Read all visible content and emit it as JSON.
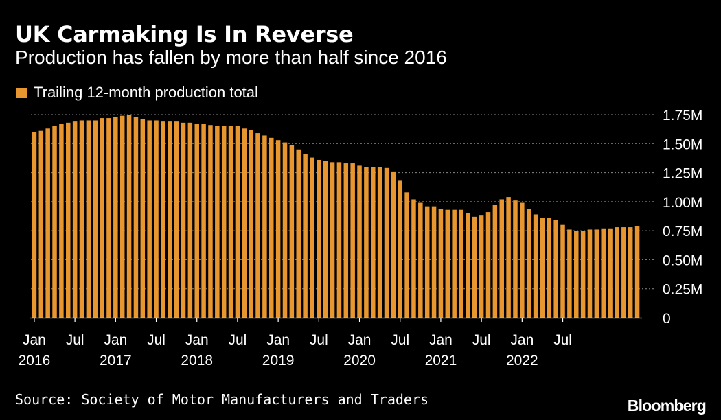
{
  "header": {
    "title": "UK Carmaking Is In Reverse",
    "subtitle": "Production has fallen by more than half since 2016"
  },
  "legend": {
    "label": "Trailing 12-month production total",
    "color": "#e8962f"
  },
  "footer": {
    "source": "Source: Society of Motor Manufacturers and Traders",
    "brand": "Bloomberg"
  },
  "chart_data": {
    "type": "bar",
    "title": "UK Carmaking Is In Reverse",
    "subtitle": "Production has fallen by more than half since 2016",
    "series": [
      {
        "name": "Trailing 12-month production total",
        "color": "#e8962f",
        "start": "Jan 2016",
        "frequency": "monthly",
        "values": [
          1.6,
          1.61,
          1.63,
          1.65,
          1.67,
          1.68,
          1.69,
          1.7,
          1.7,
          1.7,
          1.72,
          1.72,
          1.73,
          1.74,
          1.75,
          1.73,
          1.71,
          1.7,
          1.7,
          1.69,
          1.69,
          1.69,
          1.68,
          1.68,
          1.67,
          1.67,
          1.66,
          1.65,
          1.65,
          1.65,
          1.65,
          1.63,
          1.62,
          1.59,
          1.57,
          1.55,
          1.53,
          1.51,
          1.49,
          1.45,
          1.41,
          1.38,
          1.36,
          1.35,
          1.34,
          1.34,
          1.33,
          1.33,
          1.31,
          1.3,
          1.3,
          1.3,
          1.29,
          1.26,
          1.18,
          1.08,
          1.02,
          0.99,
          0.96,
          0.96,
          0.94,
          0.93,
          0.93,
          0.93,
          0.9,
          0.87,
          0.88,
          0.91,
          0.97,
          1.02,
          1.04,
          1.01,
          0.99,
          0.94,
          0.89,
          0.86,
          0.86,
          0.84,
          0.8,
          0.76,
          0.75,
          0.75,
          0.76,
          0.76,
          0.77,
          0.77,
          0.78,
          0.78,
          0.78,
          0.79
        ]
      }
    ],
    "y_ticks": [
      {
        "value": 0,
        "label": "0"
      },
      {
        "value": 0.25,
        "label": "0.25M"
      },
      {
        "value": 0.5,
        "label": "0.50M"
      },
      {
        "value": 0.75,
        "label": "0.75M"
      },
      {
        "value": 1.0,
        "label": "1.00M"
      },
      {
        "value": 1.25,
        "label": "1.25M"
      },
      {
        "value": 1.5,
        "label": "1.50M"
      },
      {
        "value": 1.75,
        "label": "1.75M"
      }
    ],
    "ylim": [
      0,
      1.75
    ],
    "y_unit": "M",
    "x_ticks": [
      {
        "index": 0,
        "month": "Jan",
        "year": "2016"
      },
      {
        "index": 6,
        "month": "Jul",
        "year": ""
      },
      {
        "index": 12,
        "month": "Jan",
        "year": "2017"
      },
      {
        "index": 18,
        "month": "Jul",
        "year": ""
      },
      {
        "index": 24,
        "month": "Jan",
        "year": "2018"
      },
      {
        "index": 30,
        "month": "Jul",
        "year": ""
      },
      {
        "index": 36,
        "month": "Jan",
        "year": "2019"
      },
      {
        "index": 42,
        "month": "Jul",
        "year": ""
      },
      {
        "index": 48,
        "month": "Jan",
        "year": "2020"
      },
      {
        "index": 54,
        "month": "Jul",
        "year": ""
      },
      {
        "index": 60,
        "month": "Jan",
        "year": "2021"
      },
      {
        "index": 66,
        "month": "Jul",
        "year": ""
      },
      {
        "index": 72,
        "month": "Jan",
        "year": "2022"
      },
      {
        "index": 78,
        "month": "Jul",
        "year": ""
      }
    ],
    "grid": true,
    "grid_style": "dotted",
    "y_axis_side": "right",
    "legend_placement": "top-left"
  }
}
